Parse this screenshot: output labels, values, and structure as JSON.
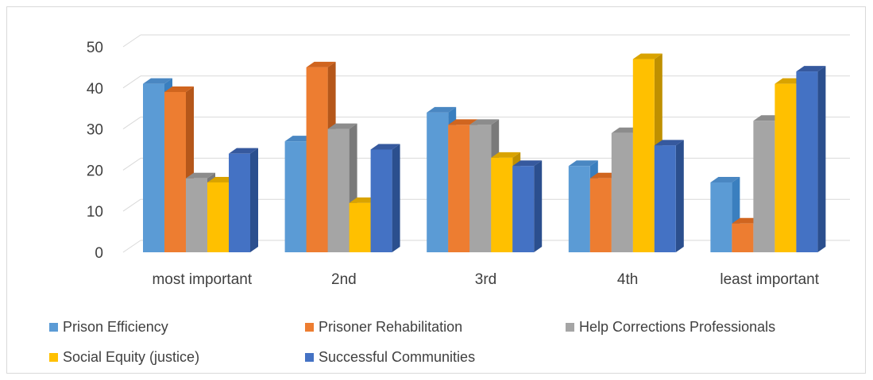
{
  "chart_data": {
    "type": "bar",
    "categories": [
      "most important",
      "2nd",
      "3rd",
      "4th",
      "least important"
    ],
    "series": [
      {
        "name": "Prison Efficiency",
        "color": "#5b9bd5",
        "side": "#3a7fbf",
        "top": "#4a87c2",
        "values": [
          41,
          27,
          34,
          21,
          17
        ]
      },
      {
        "name": "Prisoner Rehabilitation",
        "color": "#ed7d31",
        "side": "#b5571a",
        "top": "#d0651f",
        "values": [
          39,
          45,
          31,
          18,
          7
        ]
      },
      {
        "name": "Help Corrections Professionals",
        "color": "#a5a5a5",
        "side": "#7a7a7a",
        "top": "#8c8c8c",
        "values": [
          18,
          30,
          31,
          29,
          32
        ]
      },
      {
        "name": "Social Equity (justice)",
        "color": "#ffc000",
        "side": "#bf9000",
        "top": "#d9a300",
        "values": [
          17,
          12,
          23,
          47,
          41
        ]
      },
      {
        "name": "Successful Communities",
        "color": "#4472c4",
        "side": "#2b4f8e",
        "top": "#36599e",
        "values": [
          24,
          25,
          21,
          26,
          44
        ]
      }
    ],
    "yticks": [
      "0",
      "10",
      "20",
      "30",
      "40",
      "50"
    ],
    "ylim": [
      0,
      50
    ],
    "grid": true,
    "legend_position": "bottom"
  },
  "legend": {
    "items": [
      "Prison Efficiency",
      "Prisoner Rehabilitation",
      "Help Corrections Professionals",
      "Social Equity (justice)",
      "Successful Communities"
    ]
  }
}
